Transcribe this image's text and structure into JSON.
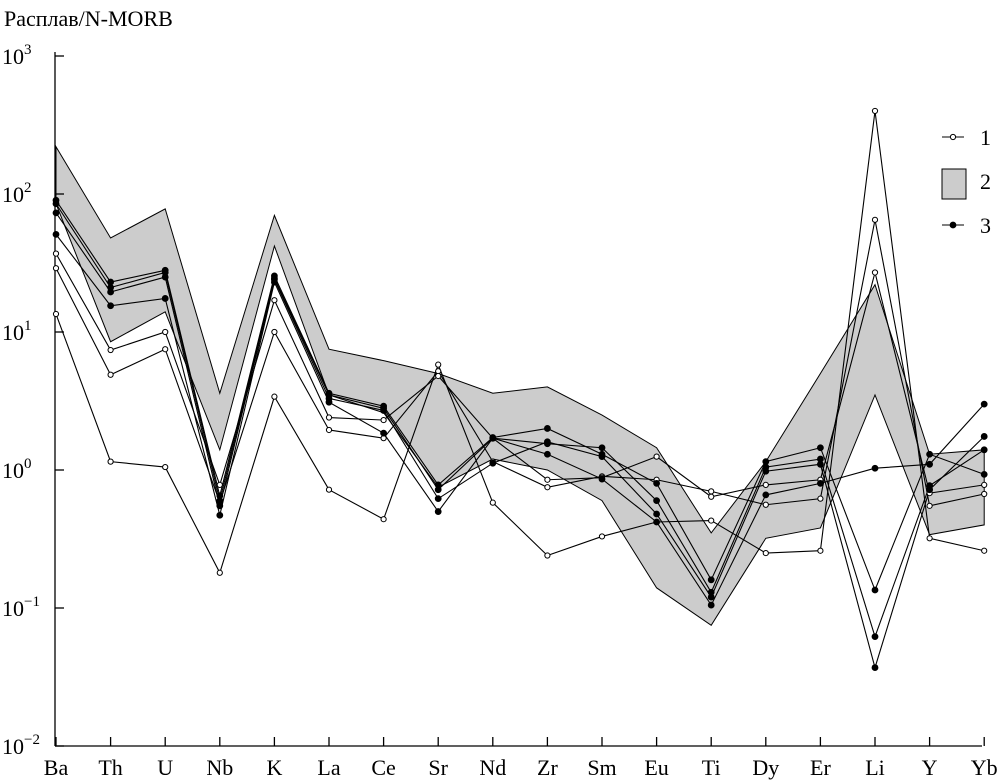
{
  "chart_data": {
    "type": "line",
    "ylabel": "Расплав/N-MORB",
    "yscale": "log",
    "ylim": [
      0.01,
      1000
    ],
    "yticks": [
      {
        "value": 0.01,
        "base": "10",
        "exp": "−2"
      },
      {
        "value": 0.1,
        "base": "10",
        "exp": "−1"
      },
      {
        "value": 1,
        "base": "10",
        "exp": "0"
      },
      {
        "value": 10,
        "base": "10",
        "exp": "1"
      },
      {
        "value": 100,
        "base": "10",
        "exp": "2"
      },
      {
        "value": 1000,
        "base": "10",
        "exp": "3"
      }
    ],
    "categories": [
      "Ba",
      "Th",
      "U",
      "Nb",
      "K",
      "La",
      "Ce",
      "Sr",
      "Nd",
      "Zr",
      "Sm",
      "Eu",
      "Ti",
      "Dy",
      "Er",
      "Li",
      "Y",
      "Yb"
    ],
    "legend": [
      {
        "label": "1",
        "kind": "open-marker-line"
      },
      {
        "label": "2",
        "kind": "shaded-field"
      },
      {
        "label": "3",
        "kind": "filled-marker-line"
      }
    ],
    "field": {
      "label": "2",
      "color": "#cccccc",
      "upper": [
        220,
        48,
        78,
        3.6,
        70,
        7.5,
        6.2,
        5.0,
        3.6,
        4.0,
        2.5,
        1.45,
        0.35,
        1.15,
        5.0,
        22,
        1.3,
        1.4
      ],
      "lower": [
        85,
        8.5,
        14,
        1.4,
        42,
        3.5,
        2.6,
        0.75,
        1.2,
        1.0,
        0.6,
        0.14,
        0.075,
        0.32,
        0.38,
        3.5,
        0.34,
        0.4
      ]
    },
    "series": [
      {
        "group": "1",
        "marker": "open",
        "values": [
          13.5,
          1.15,
          1.05,
          0.18,
          3.4,
          0.72,
          0.44,
          5.8,
          0.58,
          0.24,
          0.33,
          0.42,
          0.43,
          0.25,
          0.26,
          400,
          0.32,
          0.26
        ]
      },
      {
        "group": "1",
        "marker": "open",
        "values": [
          29,
          4.9,
          7.5,
          0.58,
          10,
          1.95,
          1.7,
          5.2,
          1.15,
          0.75,
          0.9,
          0.85,
          0.7,
          0.56,
          0.62,
          65,
          0.55,
          0.67
        ]
      },
      {
        "group": "1",
        "marker": "open",
        "values": [
          37,
          7.4,
          10,
          0.78,
          17,
          2.4,
          2.3,
          4.8,
          1.7,
          0.85,
          0.88,
          1.25,
          0.64,
          0.78,
          0.85,
          27,
          0.68,
          0.78
        ]
      },
      {
        "group": "3",
        "marker": "filled",
        "values": [
          51,
          15.5,
          17.5,
          0.47,
          23,
          3.1,
          1.85,
          0.5,
          1.7,
          1.3,
          0.86,
          0.42,
          0.105,
          0.66,
          0.8,
          1.03,
          1.1,
          3.0
        ]
      },
      {
        "group": "3",
        "marker": "filled",
        "values": [
          73,
          19.5,
          25,
          0.55,
          24,
          3.3,
          2.7,
          0.62,
          1.12,
          1.6,
          1.25,
          0.48,
          0.12,
          0.98,
          1.1,
          0.037,
          0.72,
          1.75
        ]
      },
      {
        "group": "3",
        "marker": "filled",
        "values": [
          85,
          21,
          27,
          0.6,
          24.5,
          3.5,
          2.8,
          0.72,
          1.7,
          1.55,
          1.45,
          0.6,
          0.13,
          1.05,
          1.2,
          0.062,
          0.77,
          1.4
        ]
      },
      {
        "group": "3",
        "marker": "filled",
        "values": [
          90,
          23,
          28,
          0.65,
          25.5,
          3.6,
          2.9,
          0.78,
          1.72,
          2.0,
          1.3,
          0.8,
          0.16,
          1.15,
          1.45,
          0.135,
          1.3,
          0.93
        ]
      }
    ]
  }
}
